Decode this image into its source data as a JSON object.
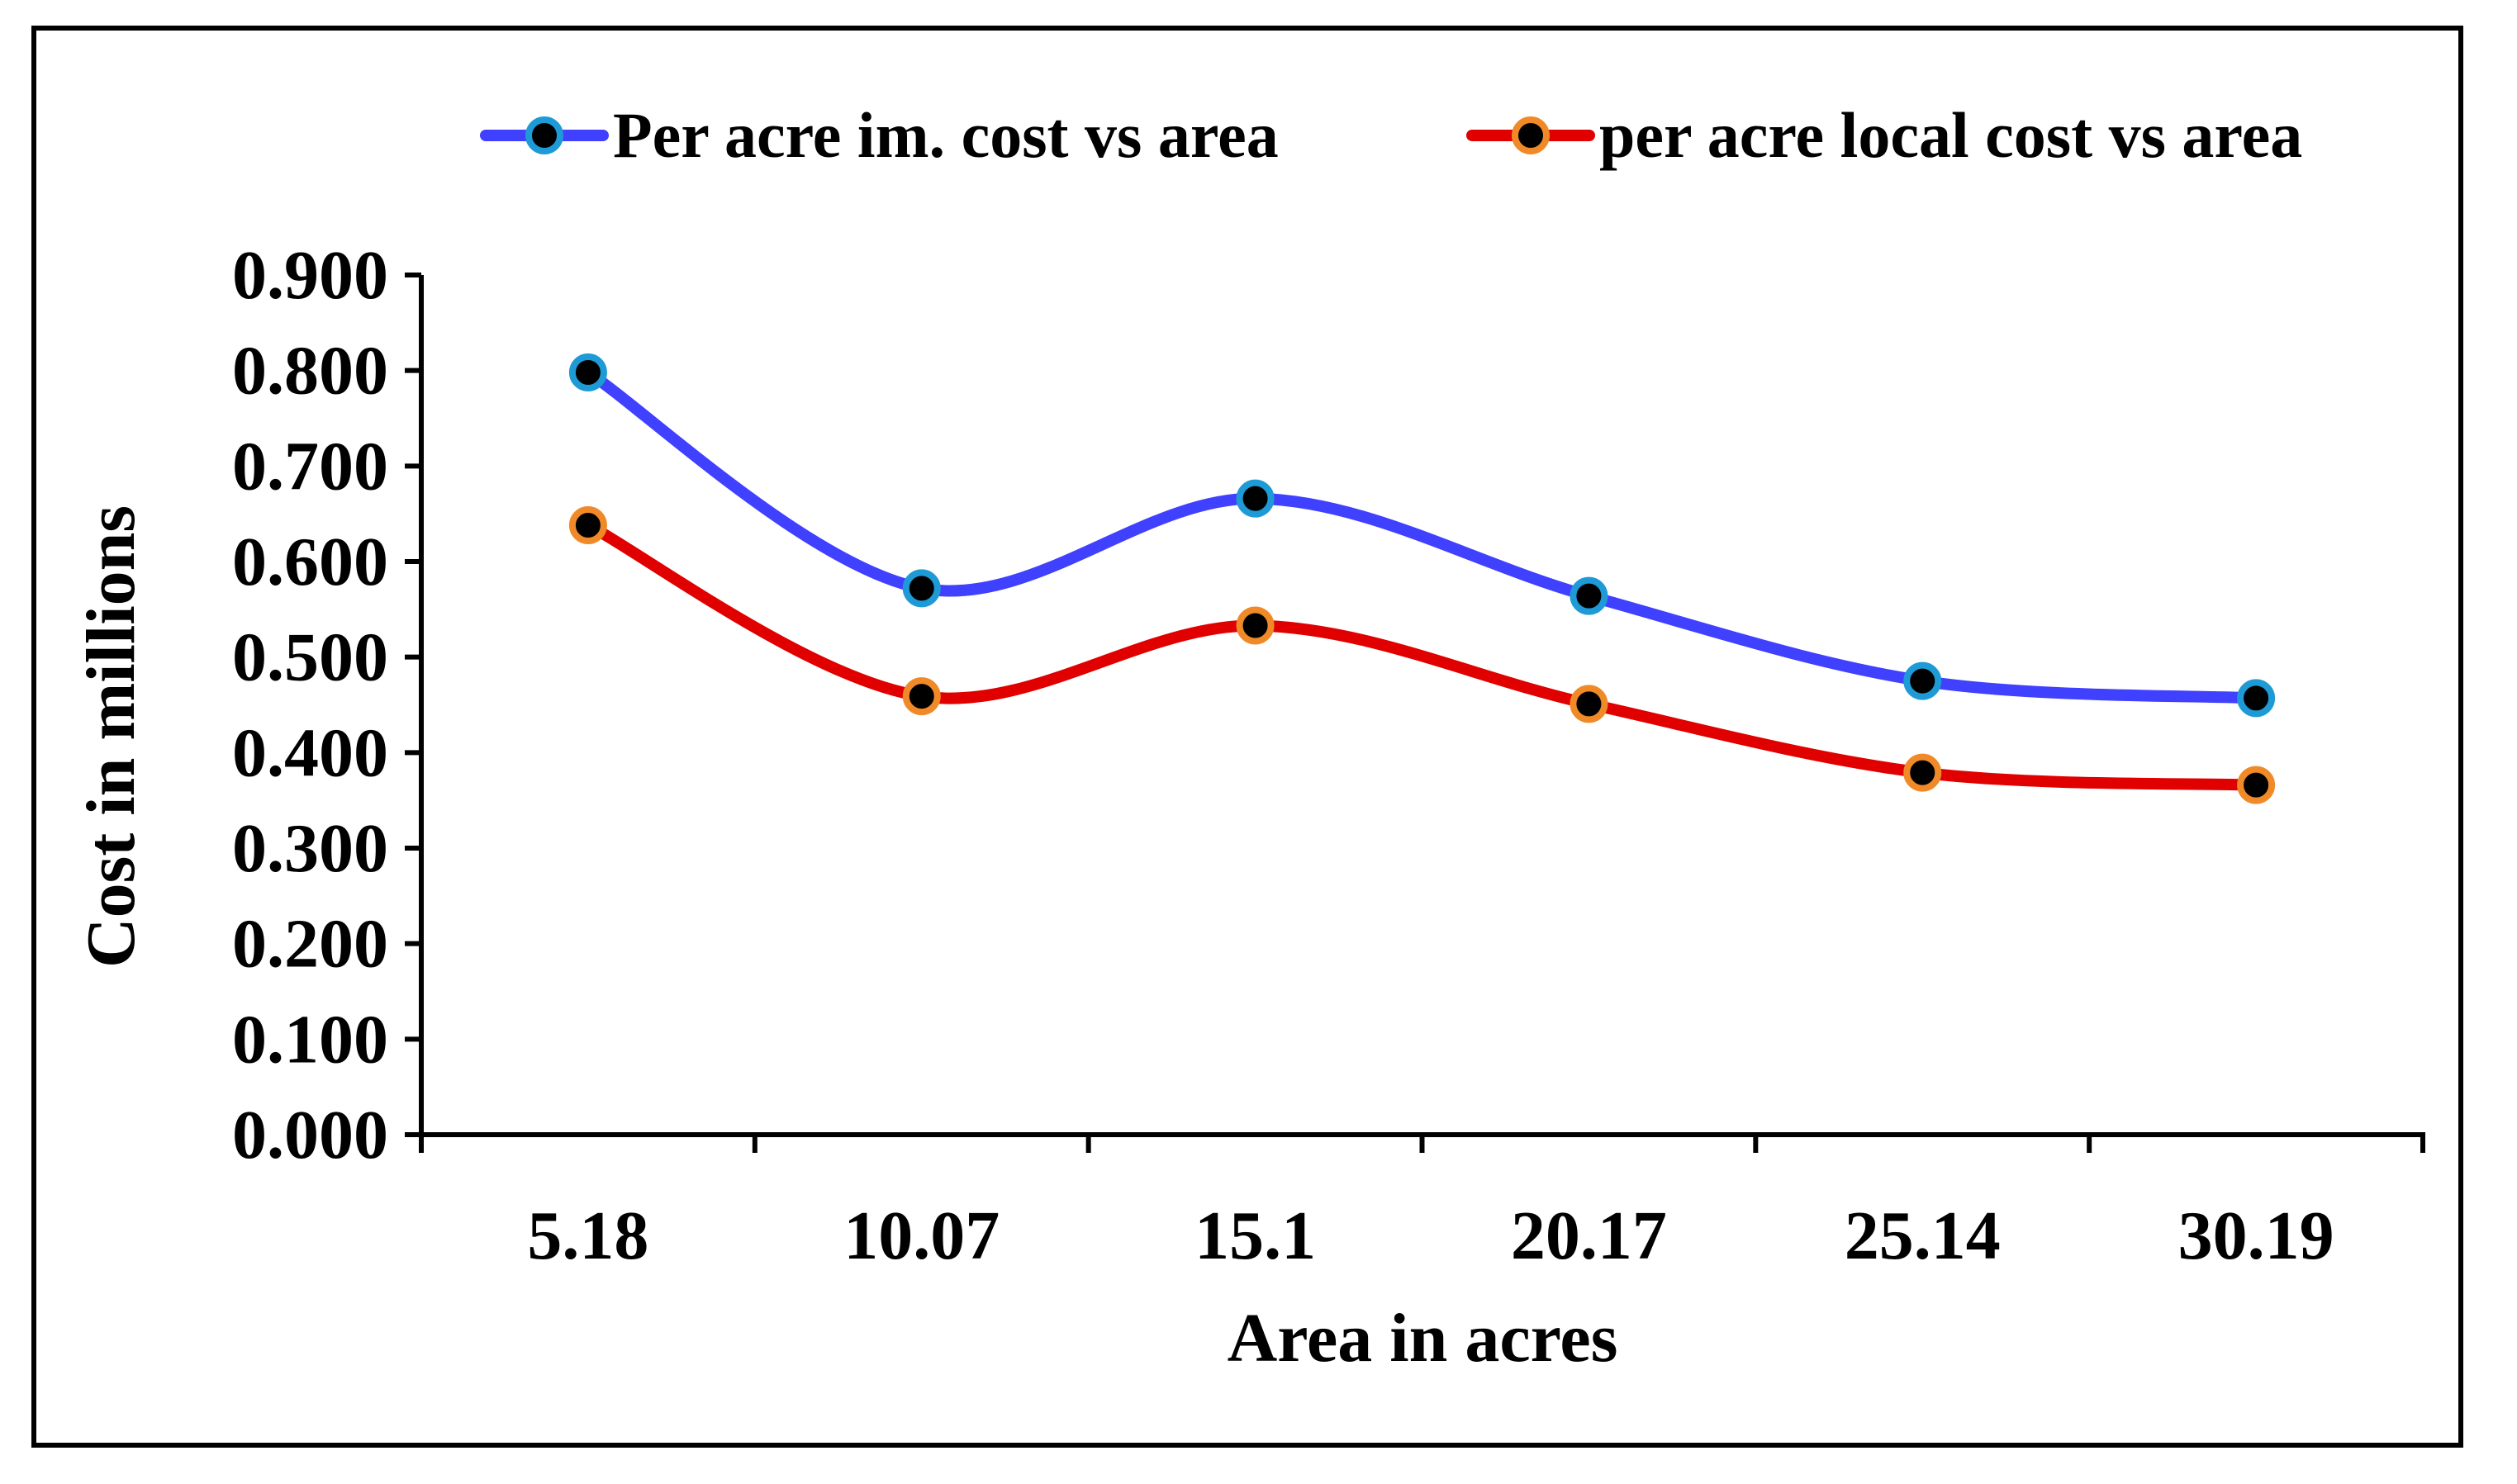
{
  "chart_data": {
    "type": "line",
    "title": "",
    "xlabel": "Area in acres",
    "ylabel": "Cost in millions",
    "categories": [
      "5.18",
      "10.07",
      "15.1",
      "20.17",
      "25.14",
      "30.19"
    ],
    "ylim": [
      0,
      0.9
    ],
    "ytick_labels": [
      "0.000",
      "0.100",
      "0.200",
      "0.300",
      "0.400",
      "0.500",
      "0.600",
      "0.700",
      "0.800",
      "0.900"
    ],
    "legend_position": "top",
    "grid": false,
    "series": [
      {
        "name": "Per acre im. cost vs area",
        "values": [
          0.798,
          0.572,
          0.666,
          0.564,
          0.475,
          0.457
        ],
        "line_color": "#4040ff",
        "marker_edge_color": "#1e9ad6",
        "marker_fill_color": "#000000"
      },
      {
        "name": "per acre local cost vs area",
        "values": [
          0.638,
          0.459,
          0.533,
          0.451,
          0.379,
          0.366
        ],
        "line_color": "#e00000",
        "marker_edge_color": "#f08a28",
        "marker_fill_color": "#000000"
      }
    ]
  }
}
